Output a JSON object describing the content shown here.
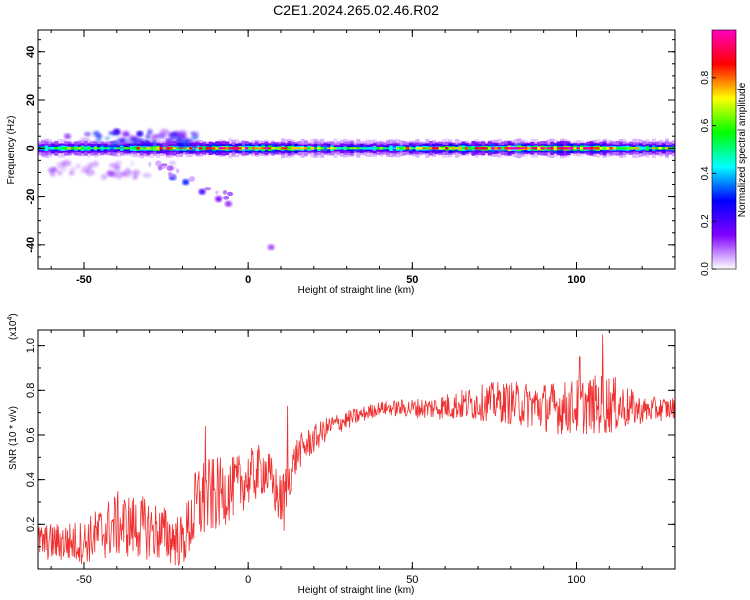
{
  "title": "C2E1.2024.265.02.46.R02",
  "chart_data": [
    {
      "type": "heatmap",
      "xlabel": "Height of straight line (km)",
      "ylabel": "Frequency (Hz)",
      "xlim": [
        -64,
        130
      ],
      "ylim": [
        -50,
        49
      ],
      "xticks": [
        -50,
        0,
        50,
        100
      ],
      "yticks": [
        40,
        20,
        0,
        -20,
        -40
      ],
      "colorbar": {
        "label": "Normalized spectral amplitude",
        "range": [
          0.0,
          1.0
        ],
        "ticks": [
          "0.0",
          "0.2",
          "0.4",
          "0.6",
          "0.8"
        ],
        "colormap": [
          "#ffffff",
          "#8000ff",
          "#0000ff",
          "#00ffff",
          "#00ff00",
          "#ffff00",
          "#ff0000",
          "#ff00c0"
        ]
      },
      "band": {
        "center_freq_hz": 0,
        "halfwidth_hz": 2.5,
        "amplitude_profile": [
          {
            "x": -64,
            "a": 0.55
          },
          {
            "x": -50,
            "a": 0.6
          },
          {
            "x": -40,
            "a": 0.55
          },
          {
            "x": -30,
            "a": 0.75
          },
          {
            "x": -15,
            "a": 0.8
          },
          {
            "x": 5,
            "a": 0.9
          },
          {
            "x": 20,
            "a": 0.6
          },
          {
            "x": 40,
            "a": 0.55
          },
          {
            "x": 60,
            "a": 0.75
          },
          {
            "x": 80,
            "a": 0.95
          },
          {
            "x": 100,
            "a": 0.85
          },
          {
            "x": 115,
            "a": 0.7
          },
          {
            "x": 130,
            "a": 0.6
          }
        ]
      },
      "scatter_blobs": [
        {
          "x": -23,
          "y": -12,
          "a": 0.3
        },
        {
          "x": -19,
          "y": -14,
          "a": 0.3
        },
        {
          "x": -14,
          "y": -18,
          "a": 0.2
        },
        {
          "x": -9,
          "y": -21,
          "a": 0.15
        },
        {
          "x": -6,
          "y": -23,
          "a": 0.12
        },
        {
          "x": 7,
          "y": -41,
          "a": 0.1
        },
        {
          "x": -55,
          "y": 5,
          "a": 0.1
        },
        {
          "x": -40,
          "y": 7,
          "a": 0.2
        },
        {
          "x": -33,
          "y": 6,
          "a": 0.25
        }
      ]
    },
    {
      "type": "line",
      "xlabel": "Height of straight line (km)",
      "ylabel": "SNR (10 * v/v)",
      "yscale_label": "(x10",
      "yscale_exp": "4",
      "xlim": [
        -64,
        130
      ],
      "ylim": [
        0.0,
        1.07
      ],
      "xticks": [
        -50,
        0,
        50,
        100
      ],
      "yticks": [
        0.2,
        0.4,
        0.6,
        0.8,
        1.0
      ],
      "color": "#f03030",
      "envelope": [
        {
          "x": -64,
          "mean": 0.12,
          "amp": 0.08
        },
        {
          "x": -50,
          "mean": 0.12,
          "amp": 0.1
        },
        {
          "x": -40,
          "mean": 0.2,
          "amp": 0.15
        },
        {
          "x": -30,
          "mean": 0.18,
          "amp": 0.14
        },
        {
          "x": -20,
          "mean": 0.12,
          "amp": 0.12
        },
        {
          "x": -15,
          "mean": 0.3,
          "amp": 0.2
        },
        {
          "x": -5,
          "mean": 0.36,
          "amp": 0.14
        },
        {
          "x": 5,
          "mean": 0.45,
          "amp": 0.12
        },
        {
          "x": 10,
          "mean": 0.3,
          "amp": 0.12
        },
        {
          "x": 15,
          "mean": 0.52,
          "amp": 0.08
        },
        {
          "x": 25,
          "mean": 0.64,
          "amp": 0.05
        },
        {
          "x": 40,
          "mean": 0.72,
          "amp": 0.03
        },
        {
          "x": 55,
          "mean": 0.72,
          "amp": 0.05
        },
        {
          "x": 75,
          "mean": 0.75,
          "amp": 0.09
        },
        {
          "x": 95,
          "mean": 0.72,
          "amp": 0.12
        },
        {
          "x": 110,
          "mean": 0.74,
          "amp": 0.14
        },
        {
          "x": 120,
          "mean": 0.71,
          "amp": 0.06
        },
        {
          "x": 130,
          "mean": 0.72,
          "amp": 0.05
        }
      ],
      "peaks": [
        {
          "x": 108,
          "y": 1.05
        },
        {
          "x": -13,
          "y": 0.64
        },
        {
          "x": 12,
          "y": 0.73
        },
        {
          "x": 101,
          "y": 0.95
        },
        {
          "x": 11,
          "y": 0.17
        }
      ]
    }
  ]
}
